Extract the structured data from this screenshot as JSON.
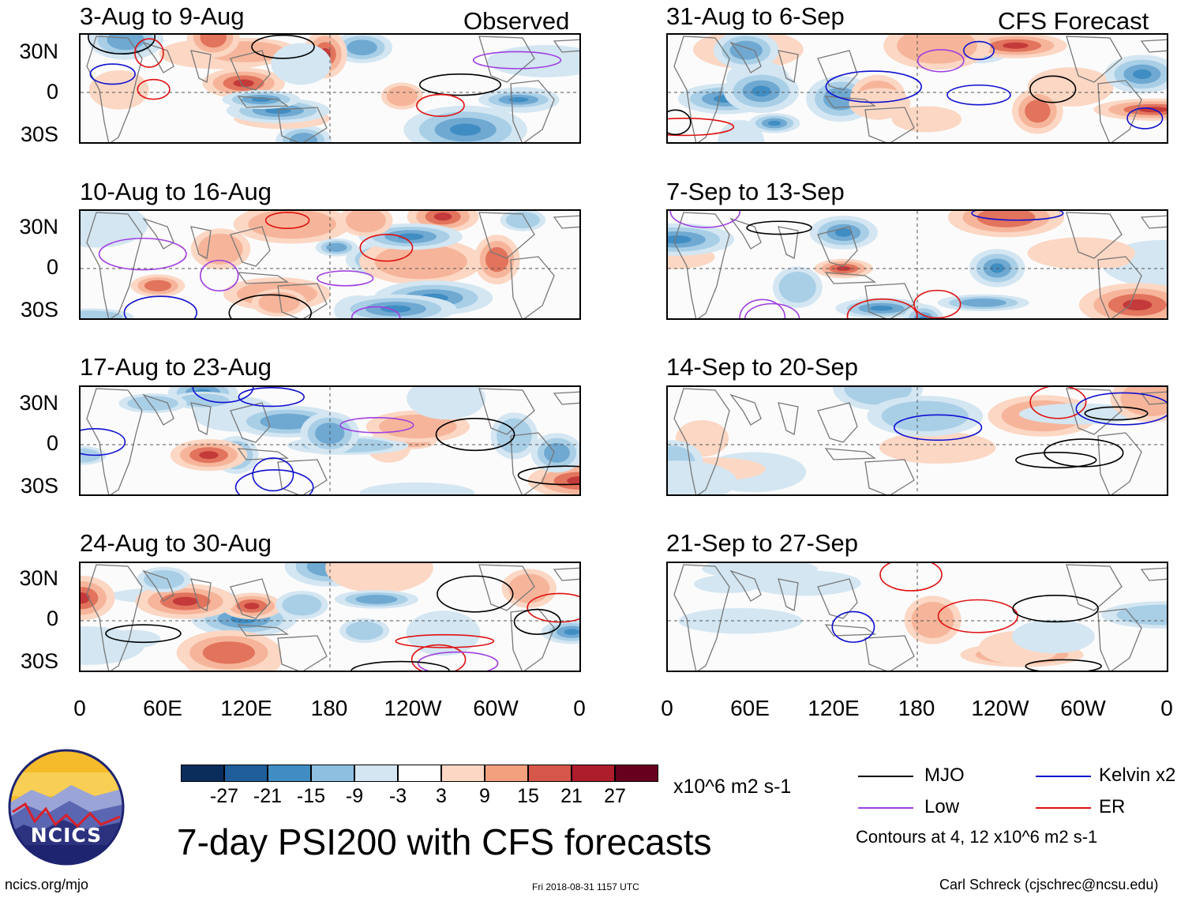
{
  "tags": {
    "observed": "Observed",
    "forecast": "CFS Forecast"
  },
  "panels": {
    "observed": [
      {
        "title": "3-Aug to 9-Aug"
      },
      {
        "title": "10-Aug to 16-Aug"
      },
      {
        "title": "17-Aug to 23-Aug"
      },
      {
        "title": "24-Aug to 30-Aug"
      }
    ],
    "forecast": [
      {
        "title": "31-Aug to 6-Sep"
      },
      {
        "title": "7-Sep to 13-Sep"
      },
      {
        "title": "14-Sep to 20-Sep"
      },
      {
        "title": "21-Sep to 27-Sep"
      }
    ]
  },
  "axes": {
    "lat_labels": [
      "30N",
      "0",
      "30S"
    ],
    "lon_labels": [
      "0",
      "60E",
      "120E",
      "180",
      "120W",
      "60W",
      "0"
    ]
  },
  "colorbar": {
    "colors": [
      "#0b2d5c",
      "#1f5e9b",
      "#3f8dc3",
      "#8dbfe0",
      "#d3e6f2",
      "#ffffff",
      "#fbd7c4",
      "#f2a07e",
      "#d65749",
      "#ae1d2c",
      "#67001f"
    ],
    "labels": [
      "-27",
      "-21",
      "-15",
      "-9",
      "-3",
      "3",
      "9",
      "15",
      "21",
      "27"
    ],
    "units": "x10^6 m2 s-1"
  },
  "legend": {
    "items": [
      {
        "label": "MJO",
        "color": "#000000"
      },
      {
        "label": "Kelvin x2",
        "color": "#1010d0"
      },
      {
        "label": "Low",
        "color": "#a040e0"
      },
      {
        "label": "ER",
        "color": "#e01010"
      }
    ],
    "note": "Contours at 4, 12 x10^6 m2 s-1"
  },
  "footer": {
    "main_title": "7-day PSI200 with CFS forecasts",
    "logo_text": "NCICS",
    "url": "ncics.org/mjo",
    "timestamp": "Fri 2018-08-31 1157 UTC",
    "author": "Carl Schreck (cjschrec@ncsu.edu)"
  }
}
